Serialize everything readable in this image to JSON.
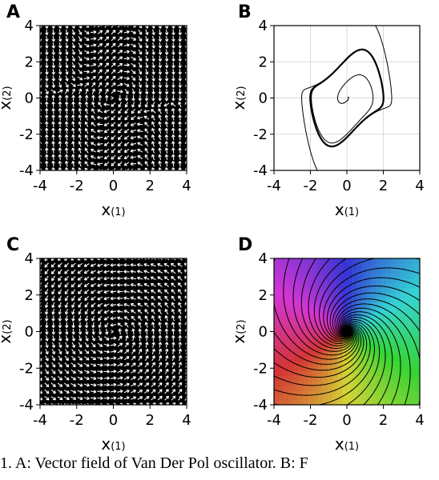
{
  "chart_data": [
    {
      "panel": "A",
      "type": "quiver",
      "system": "Van Der Pol oscillator vector field",
      "xlim": [
        -4,
        4
      ],
      "ylim": [
        -4,
        4
      ],
      "xticks": [
        "-4",
        "-2",
        "0",
        "2",
        "4"
      ],
      "yticks": [
        "4",
        "2",
        "0",
        "-2",
        "-4"
      ],
      "xlabel": "x",
      "xlabel_sub": "(1)",
      "ylabel": "x",
      "ylabel_sub": "(2)",
      "grid": false
    },
    {
      "panel": "B",
      "type": "line",
      "system": "Van Der Pol oscillator trajectories with limit cycle",
      "xlim": [
        -4,
        4
      ],
      "ylim": [
        -4,
        4
      ],
      "xticks": [
        "-4",
        "-2",
        "0",
        "2",
        "4"
      ],
      "yticks": [
        "4",
        "2",
        "0",
        "-2",
        "-4"
      ],
      "xlabel": "x",
      "xlabel_sub": "(1)",
      "ylabel": "x",
      "ylabel_sub": "(2)",
      "grid": true
    },
    {
      "panel": "C",
      "type": "quiver",
      "system": "rotational vector field",
      "xlim": [
        -4,
        4
      ],
      "ylim": [
        -4,
        4
      ],
      "xticks": [
        "-4",
        "-2",
        "0",
        "2",
        "4"
      ],
      "yticks": [
        "4",
        "2",
        "0",
        "-2",
        "-4"
      ],
      "xlabel": "x",
      "xlabel_sub": "(1)",
      "ylabel": "x",
      "ylabel_sub": "(2)",
      "grid": false
    },
    {
      "panel": "D",
      "type": "heatmap",
      "system": "phase-colored streamlines spiraling into origin",
      "xlim": [
        -4,
        4
      ],
      "ylim": [
        -4,
        4
      ],
      "xticks": [
        "-4",
        "-2",
        "0",
        "2",
        "4"
      ],
      "yticks": [
        "4",
        "2",
        "0",
        "-2",
        "-4"
      ],
      "xlabel": "x",
      "xlabel_sub": "(1)",
      "ylabel": "x",
      "ylabel_sub": "(2)",
      "grid": false
    }
  ],
  "caption": "1. A: Vector field of Van Der Pol oscillator. B: F"
}
